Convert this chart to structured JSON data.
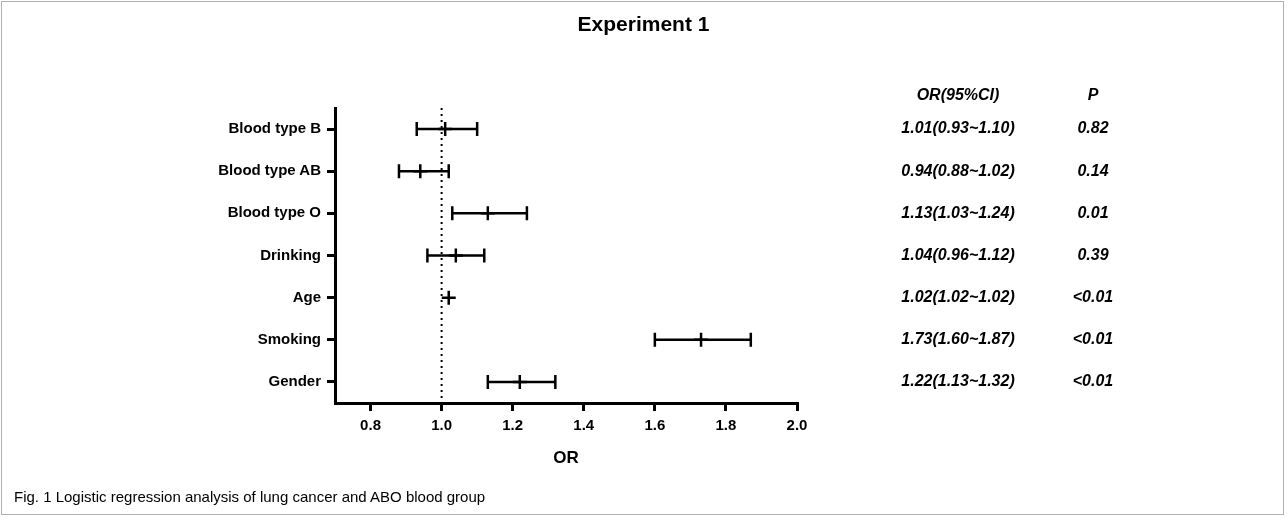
{
  "chart_data": {
    "type": "scatter",
    "title": "Experiment 1",
    "xlabel": "OR",
    "orientation": "horizontal",
    "categories": [
      "Blood type B",
      "Blood type AB",
      "Blood type O",
      "Drinking",
      "Age",
      "Smoking",
      "Gender"
    ],
    "values": [
      1.01,
      0.94,
      1.13,
      1.04,
      1.02,
      1.73,
      1.22
    ],
    "errors": [
      [
        0.93,
        1.1
      ],
      [
        0.88,
        1.02
      ],
      [
        1.03,
        1.24
      ],
      [
        0.96,
        1.12
      ],
      [
        1.02,
        1.02
      ],
      [
        1.6,
        1.87
      ],
      [
        1.13,
        1.32
      ]
    ],
    "value_labels": [
      "1.01(0.93~1.10)",
      "0.94(0.88~1.02)",
      "1.13(1.03~1.24)",
      "1.04(0.96~1.12)",
      "1.02(1.02~1.02)",
      "1.73(1.60~1.87)",
      "1.22(1.13~1.32)"
    ],
    "color": "#000000",
    "xlim": [
      0.7,
      2.0
    ],
    "xticks": [
      {
        "value": 0.8,
        "label": "0.8"
      },
      {
        "value": 1.0,
        "label": "1.0"
      },
      {
        "value": 1.2,
        "label": "1.2"
      },
      {
        "value": 1.4,
        "label": "1.4"
      },
      {
        "value": 1.6,
        "label": "1.6"
      },
      {
        "value": 1.8,
        "label": "1.8"
      },
      {
        "value": 2.0,
        "label": "2.0"
      }
    ],
    "ref_lines": [
      {
        "axis": "x",
        "value": 1.0,
        "line_style": "dotted"
      }
    ],
    "grid": false,
    "legend": false,
    "marker": "cross",
    "annotations": [
      "OR(95%CI)",
      "P",
      "0.82",
      "0.14",
      "0.01",
      "0.39",
      "<0.01",
      "<0.01",
      "<0.01",
      "Fig. 1 Logistic regression analysis of lung cancer and ABO blood group"
    ]
  }
}
